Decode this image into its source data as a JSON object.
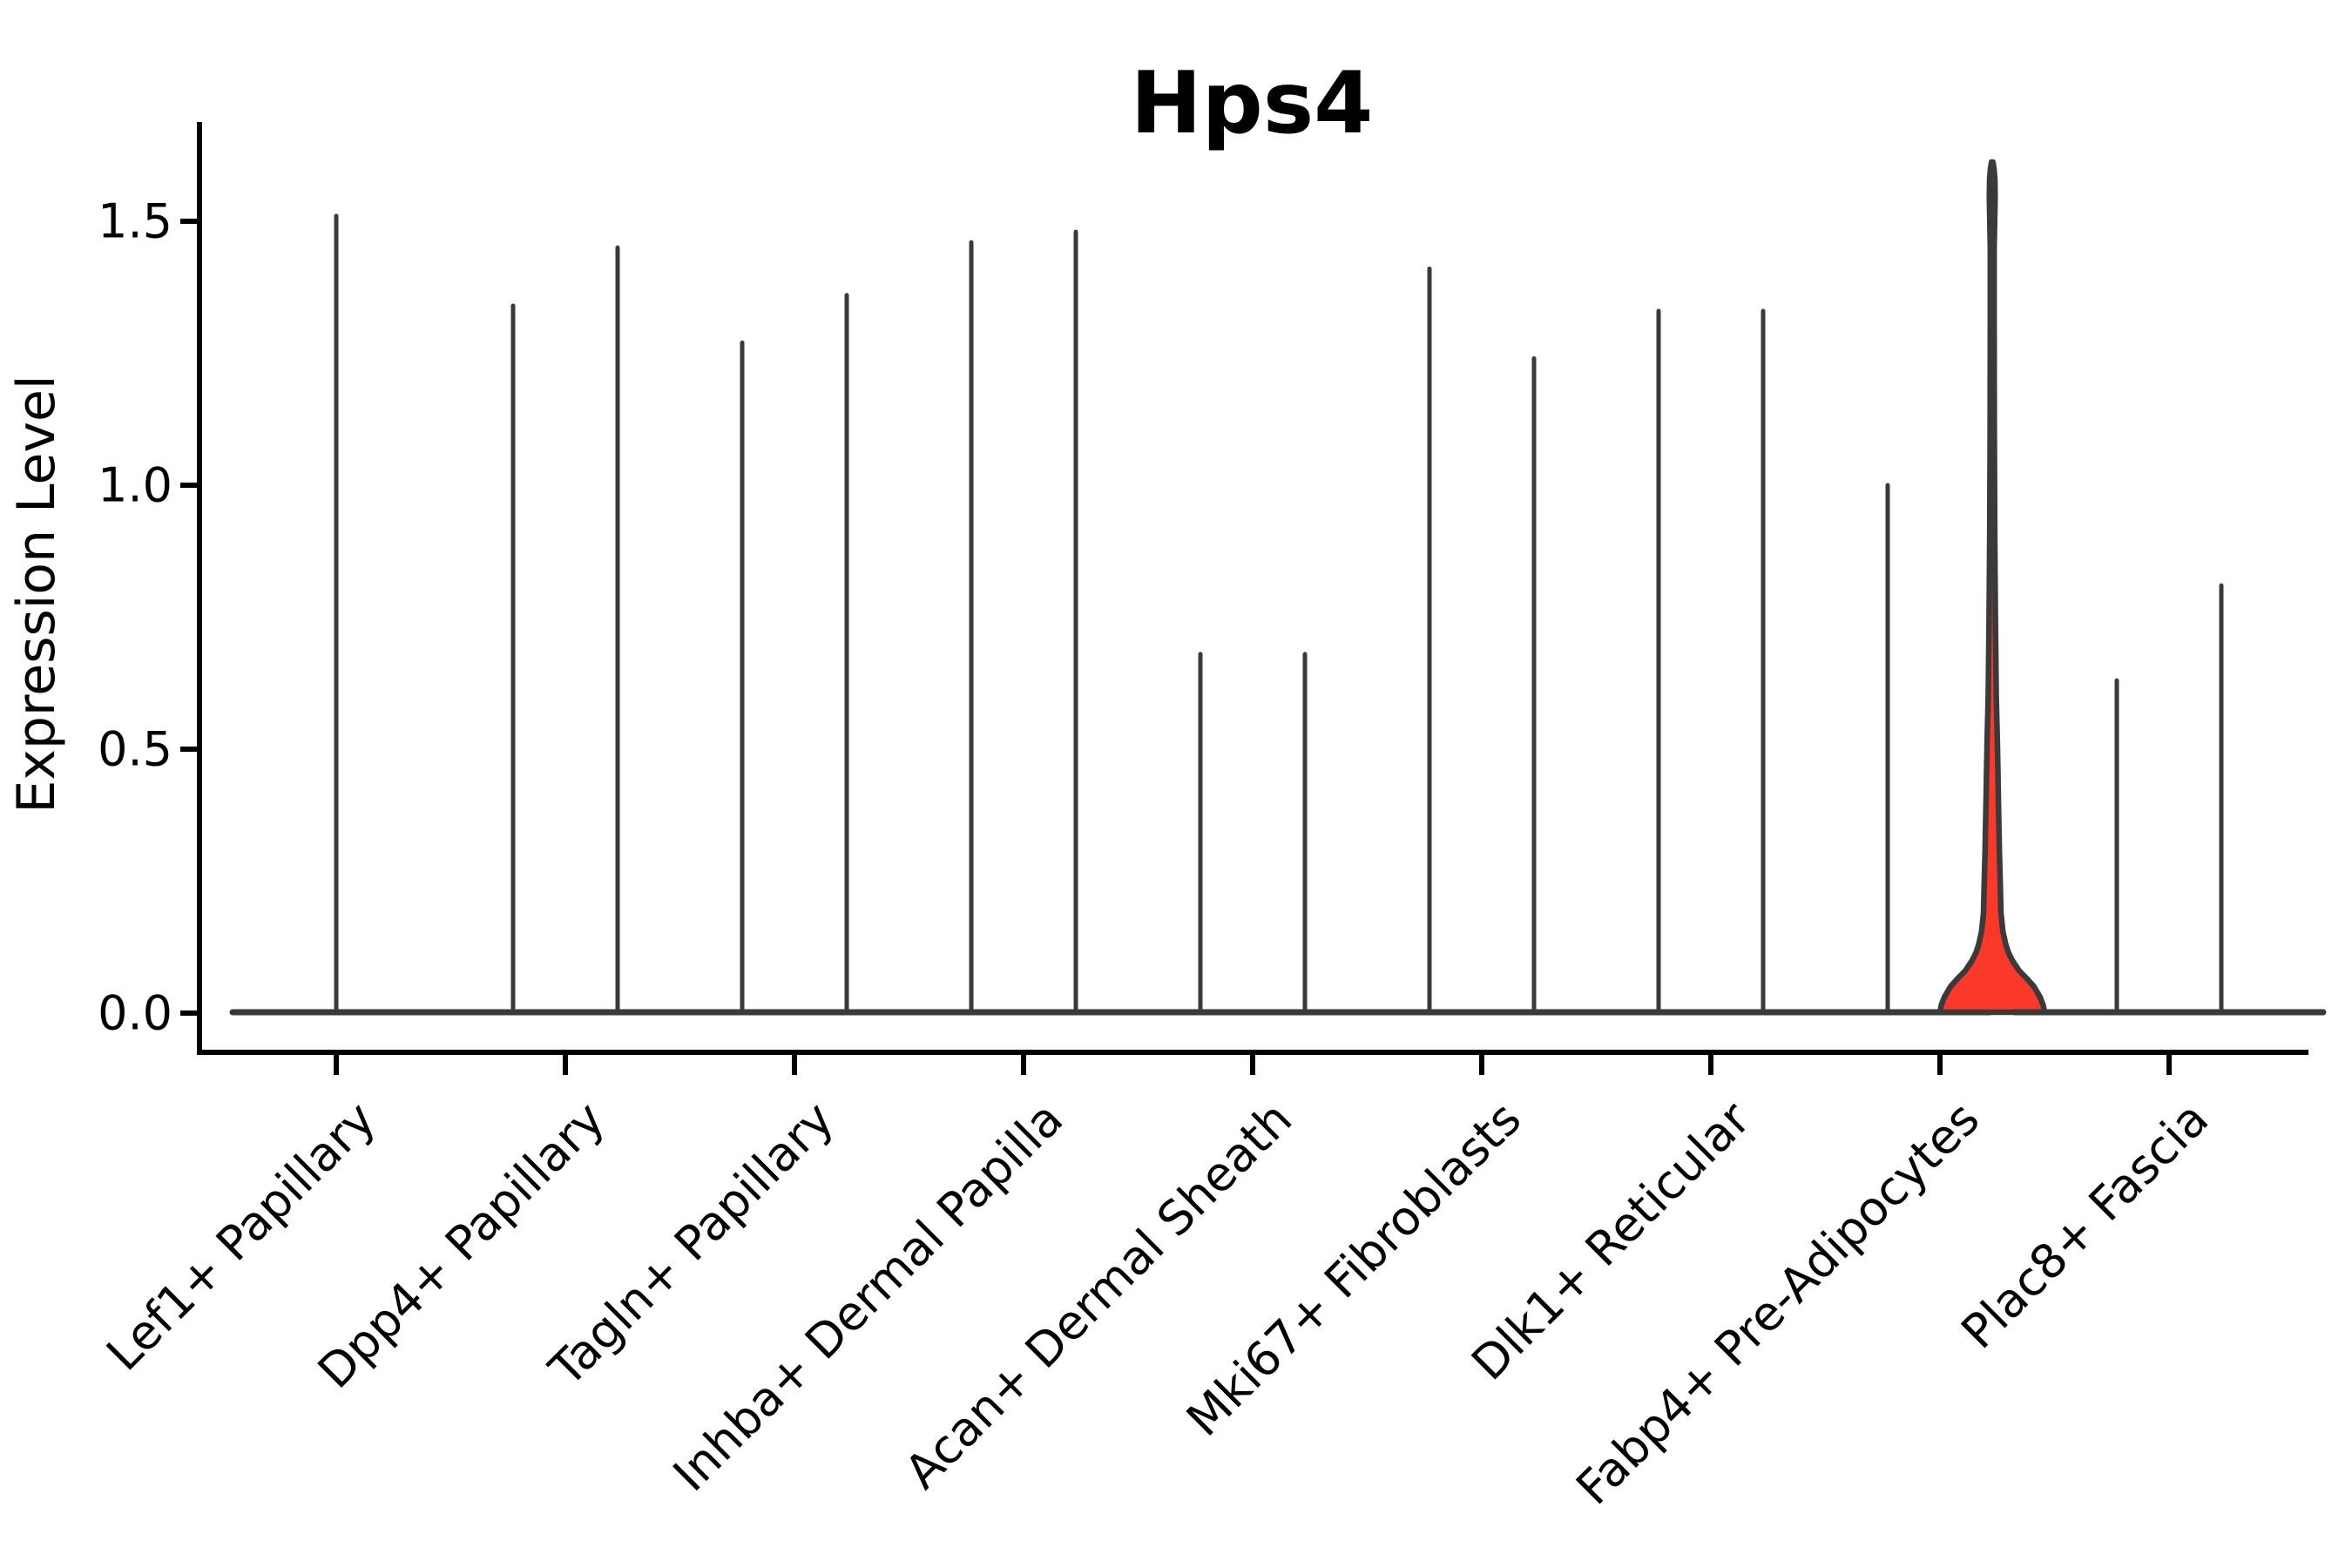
{
  "title": "Hps4",
  "y_axis": {
    "label": "Expression Level",
    "tick_labels": [
      "0.0",
      "0.5",
      "1.0",
      "1.5"
    ],
    "tick_values": [
      0.0,
      0.5,
      1.0,
      1.5
    ]
  },
  "colors": {
    "highlight_fill": "#fa392b",
    "violin_outline": "#3a3a3a",
    "axis_color": "#000000",
    "background": "#ffffff"
  },
  "chart_data": {
    "type": "violin",
    "title": "Hps4",
    "xlabel": "",
    "ylabel": "Expression Level",
    "ylim": [
      0,
      1.68
    ],
    "yticks": [
      0.0,
      0.5,
      1.0,
      1.5
    ],
    "legend": "none",
    "grid": false,
    "distribution_note": "All violins have nearly all density at expression 0 (wide flat base) with a thin spike up to the max expressed value; only the highlighted violin shows a visible red-filled bell and neck.",
    "categories": [
      {
        "label": "Lef1+ Papillary",
        "violins": [
          {
            "side": "center",
            "max": 1.51,
            "highlighted": false
          }
        ]
      },
      {
        "label": "Dpp4+ Papillary",
        "violins": [
          {
            "side": "left",
            "max": 1.34,
            "highlighted": false
          },
          {
            "side": "right",
            "max": 1.45,
            "highlighted": false
          }
        ]
      },
      {
        "label": "Tagln+ Papillary",
        "violins": [
          {
            "side": "left",
            "max": 1.27,
            "highlighted": false
          },
          {
            "side": "right",
            "max": 1.36,
            "highlighted": false
          }
        ]
      },
      {
        "label": "Inhba+ Dermal Papilla",
        "violins": [
          {
            "side": "left",
            "max": 1.46,
            "highlighted": false
          },
          {
            "side": "right",
            "max": 1.48,
            "highlighted": false
          }
        ]
      },
      {
        "label": "Acan+ Dermal Sheath",
        "violins": [
          {
            "side": "left",
            "max": 0.68,
            "highlighted": false
          },
          {
            "side": "right",
            "max": 0.68,
            "highlighted": false
          }
        ]
      },
      {
        "label": "Mki67+ Fibroblasts",
        "violins": [
          {
            "side": "left",
            "max": 1.41,
            "highlighted": false
          },
          {
            "side": "right",
            "max": 1.24,
            "highlighted": false
          }
        ]
      },
      {
        "label": "Dlk1+ Reticular",
        "violins": [
          {
            "side": "left",
            "max": 1.33,
            "highlighted": false
          },
          {
            "side": "right",
            "max": 1.33,
            "highlighted": false
          }
        ]
      },
      {
        "label": "Fabp4+ Pre-Adipocytes",
        "violins": [
          {
            "side": "left",
            "max": 1.0,
            "highlighted": false
          },
          {
            "side": "right",
            "max": 1.61,
            "highlighted": true
          }
        ]
      },
      {
        "label": "Plac8+ Fascia",
        "violins": [
          {
            "side": "left",
            "max": 0.63,
            "highlighted": false
          },
          {
            "side": "right",
            "max": 0.81,
            "highlighted": false
          }
        ]
      }
    ],
    "highlighted_violin_profile": [
      [
        0.0,
        60.0
      ],
      [
        0.015,
        58.5
      ],
      [
        0.03,
        55.0
      ],
      [
        0.05,
        48.0
      ],
      [
        0.065,
        40.0
      ],
      [
        0.08,
        31.0
      ],
      [
        0.1,
        23.0
      ],
      [
        0.115,
        18.5
      ],
      [
        0.13,
        15.5
      ],
      [
        0.155,
        12.2
      ],
      [
        0.19,
        10.0
      ],
      [
        0.24,
        9.3
      ],
      [
        0.3,
        8.3
      ],
      [
        0.35,
        7.7
      ],
      [
        0.41,
        7.0
      ],
      [
        0.46,
        6.5
      ],
      [
        0.52,
        5.8
      ],
      [
        0.6,
        4.6
      ],
      [
        0.75,
        3.6
      ],
      [
        0.9,
        2.9
      ],
      [
        1.1,
        2.4
      ],
      [
        1.3,
        2.2
      ],
      [
        1.45,
        2.2
      ],
      [
        1.51,
        2.9
      ],
      [
        1.545,
        3.3
      ],
      [
        1.58,
        3.0
      ],
      [
        1.6,
        2.0
      ],
      [
        1.612,
        0.8
      ]
    ]
  }
}
